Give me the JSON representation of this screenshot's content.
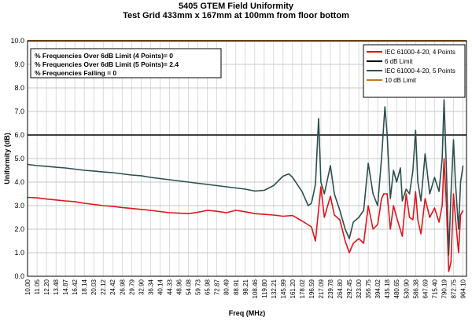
{
  "chart_data": {
    "type": "line",
    "title": "5405 GTEM Field Uniformity",
    "subtitle": "Test Grid 433mm x 167mm at 100mm from floor bottom",
    "xlabel": "Freq (MHz)",
    "ylabel": "Uniformity (dB)",
    "ylim": [
      0,
      10
    ],
    "yticks": [
      "0.0",
      "1.0",
      "2.0",
      "3.0",
      "4.0",
      "5.0",
      "6.0",
      "7.0",
      "8.0",
      "9.0",
      "10.0"
    ],
    "x_ticks": [
      "10.00",
      "11.05",
      "12.20",
      "13.48",
      "14.87",
      "16.42",
      "18.14",
      "20.03",
      "22.12",
      "24.42",
      "26.98",
      "29.79",
      "32.90",
      "36.34",
      "40.14",
      "44.33",
      "48.96",
      "54.08",
      "59.73",
      "65.98",
      "72.87",
      "80.49",
      "88.91",
      "98.21",
      "108.46",
      "119.80",
      "132.21",
      "145.99",
      "161.20",
      "178.02",
      "196.59",
      "217.09",
      "239.78",
      "264.80",
      "292.45",
      "323.00",
      "356.75",
      "394.02",
      "435.18",
      "480.65",
      "530.90",
      "586.38",
      "647.69",
      "715.40",
      "790.19",
      "872.75",
      "964.10"
    ],
    "legend_position": "top-right",
    "annotations": [
      "% Frequencies Over 6dB Limit (4 Points)= 0",
      "% Frequencies Over 6dB Limit (5 Points)= 2.4",
      "% Frequencies Failing = 0"
    ],
    "limits": [
      {
        "name": "6 dB Limit",
        "value": 6.0,
        "color": "#000000"
      },
      {
        "name": "10 dB Limit",
        "value": 10.0,
        "color": "#c87822"
      }
    ],
    "series": [
      {
        "name": "IEC 61000-4-20, 4 Points",
        "color": "#e0141c",
        "points": [
          [
            10,
            3.35
          ],
          [
            11.05,
            3.33
          ],
          [
            12.2,
            3.28
          ],
          [
            13.48,
            3.24
          ],
          [
            14.87,
            3.2
          ],
          [
            16.42,
            3.17
          ],
          [
            18.14,
            3.1
          ],
          [
            20.03,
            3.05
          ],
          [
            22.12,
            3.0
          ],
          [
            24.42,
            2.97
          ],
          [
            26.98,
            2.92
          ],
          [
            29.79,
            2.88
          ],
          [
            32.9,
            2.84
          ],
          [
            36.34,
            2.8
          ],
          [
            40.14,
            2.75
          ],
          [
            44.33,
            2.7
          ],
          [
            48.96,
            2.68
          ],
          [
            54.08,
            2.66
          ],
          [
            59.73,
            2.72
          ],
          [
            65.98,
            2.8
          ],
          [
            72.87,
            2.76
          ],
          [
            80.49,
            2.7
          ],
          [
            88.91,
            2.8
          ],
          [
            98.21,
            2.74
          ],
          [
            108.46,
            2.66
          ],
          [
            119.8,
            2.63
          ],
          [
            132.21,
            2.6
          ],
          [
            145.99,
            2.55
          ],
          [
            161.2,
            2.58
          ],
          [
            178.02,
            2.35
          ],
          [
            196.59,
            2.1
          ],
          [
            205,
            1.5
          ],
          [
            217.09,
            3.8
          ],
          [
            225,
            2.5
          ],
          [
            239.78,
            3.4
          ],
          [
            250,
            2.6
          ],
          [
            264.8,
            2.4
          ],
          [
            280,
            1.5
          ],
          [
            292.45,
            1.0
          ],
          [
            305,
            1.4
          ],
          [
            323,
            1.6
          ],
          [
            340,
            1.4
          ],
          [
            356.75,
            3.0
          ],
          [
            375,
            2.0
          ],
          [
            394.02,
            2.2
          ],
          [
            410,
            3.3
          ],
          [
            420,
            3.5
          ],
          [
            435.18,
            3.5
          ],
          [
            450,
            2.0
          ],
          [
            465,
            3.0
          ],
          [
            480.65,
            2.5
          ],
          [
            510,
            1.7
          ],
          [
            530.9,
            3.5
          ],
          [
            550,
            2.5
          ],
          [
            570,
            2.4
          ],
          [
            586.38,
            3.6
          ],
          [
            600,
            2.4
          ],
          [
            620,
            1.8
          ],
          [
            647.69,
            3.3
          ],
          [
            680,
            2.5
          ],
          [
            715.4,
            2.9
          ],
          [
            750,
            2.3
          ],
          [
            775,
            3.0
          ],
          [
            790.19,
            5.0
          ],
          [
            810,
            3.0
          ],
          [
            830,
            0.2
          ],
          [
            850,
            0.6
          ],
          [
            872.75,
            3.5
          ],
          [
            890,
            2.5
          ],
          [
            920,
            1.0
          ],
          [
            940,
            2.6
          ],
          [
            964.1,
            2.8
          ]
        ]
      },
      {
        "name": "IEC 61000-4-20, 5 Points",
        "color": "#2c4f4f",
        "points": [
          [
            10,
            4.75
          ],
          [
            11.05,
            4.7
          ],
          [
            12.2,
            4.67
          ],
          [
            13.48,
            4.63
          ],
          [
            14.87,
            4.6
          ],
          [
            16.42,
            4.55
          ],
          [
            18.14,
            4.5
          ],
          [
            20.03,
            4.47
          ],
          [
            22.12,
            4.43
          ],
          [
            24.42,
            4.4
          ],
          [
            26.98,
            4.35
          ],
          [
            29.79,
            4.3
          ],
          [
            32.9,
            4.27
          ],
          [
            36.34,
            4.2
          ],
          [
            40.14,
            4.15
          ],
          [
            44.33,
            4.1
          ],
          [
            48.96,
            4.05
          ],
          [
            54.08,
            4.0
          ],
          [
            59.73,
            3.95
          ],
          [
            65.98,
            3.9
          ],
          [
            72.87,
            3.85
          ],
          [
            80.49,
            3.8
          ],
          [
            88.91,
            3.75
          ],
          [
            98.21,
            3.7
          ],
          [
            108.46,
            3.62
          ],
          [
            119.8,
            3.65
          ],
          [
            132.21,
            3.85
          ],
          [
            145.99,
            4.25
          ],
          [
            155,
            4.35
          ],
          [
            161.2,
            4.2
          ],
          [
            178.02,
            3.6
          ],
          [
            190,
            3.0
          ],
          [
            196.59,
            3.1
          ],
          [
            205,
            3.9
          ],
          [
            212,
            6.7
          ],
          [
            217.09,
            4.0
          ],
          [
            225,
            3.5
          ],
          [
            239.78,
            4.7
          ],
          [
            250,
            3.5
          ],
          [
            264.8,
            2.8
          ],
          [
            280,
            2.0
          ],
          [
            292.45,
            1.6
          ],
          [
            305,
            2.3
          ],
          [
            323,
            2.5
          ],
          [
            340,
            2.8
          ],
          [
            356.75,
            4.8
          ],
          [
            375,
            3.5
          ],
          [
            394.02,
            3.0
          ],
          [
            410,
            5.0
          ],
          [
            425,
            7.2
          ],
          [
            435.18,
            6.0
          ],
          [
            450,
            3.3
          ],
          [
            465,
            4.5
          ],
          [
            480.65,
            4.0
          ],
          [
            500,
            4.6
          ],
          [
            510,
            3.2
          ],
          [
            530.9,
            3.7
          ],
          [
            550,
            3.5
          ],
          [
            570,
            4.5
          ],
          [
            586.38,
            6.2
          ],
          [
            600,
            4.0
          ],
          [
            620,
            3.2
          ],
          [
            647.69,
            5.2
          ],
          [
            680,
            3.5
          ],
          [
            715.4,
            4.2
          ],
          [
            750,
            3.6
          ],
          [
            775,
            5.0
          ],
          [
            790.19,
            7.5
          ],
          [
            810,
            4.5
          ],
          [
            830,
            0.9
          ],
          [
            850,
            3.5
          ],
          [
            872.75,
            5.8
          ],
          [
            890,
            4.0
          ],
          [
            920,
            2.0
          ],
          [
            940,
            4.0
          ],
          [
            964.1,
            4.7
          ]
        ]
      }
    ]
  }
}
